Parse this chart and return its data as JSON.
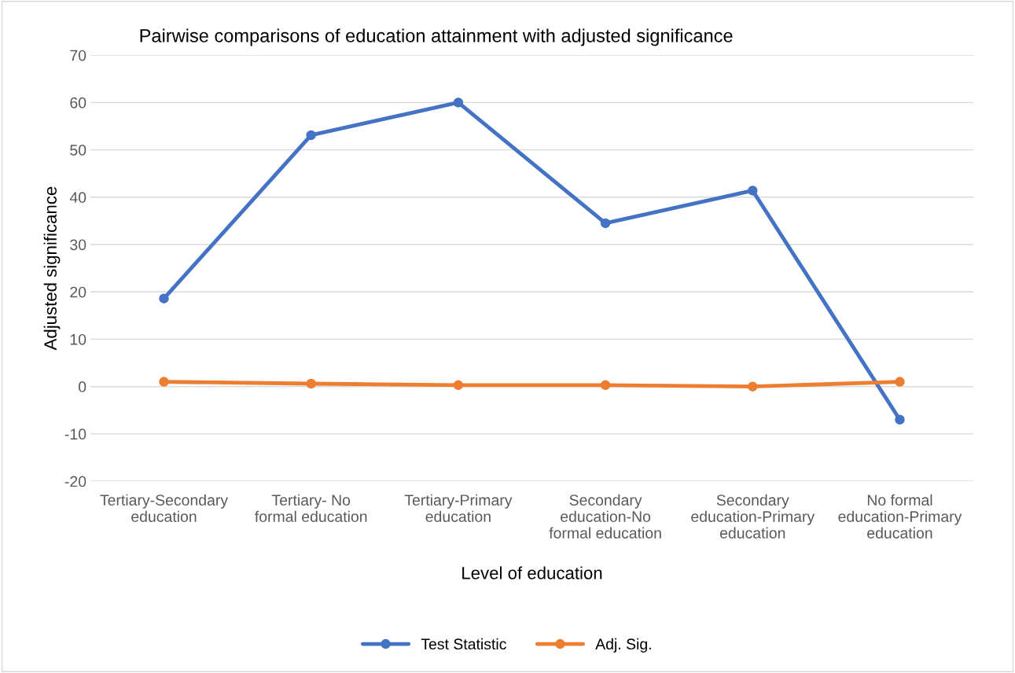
{
  "chart_data": {
    "type": "line",
    "title": "Pairwise comparisons of education attainment with adjusted significance",
    "xlabel": "Level of education",
    "ylabel": "Adjusted significance",
    "categories": [
      "Tertiary-Secondary\neducation",
      "Tertiary- No\nformal education",
      "Tertiary-Primary\neducation",
      "Secondary\neducation-No\nformal education",
      "Secondary\neducation-Primary\neducation",
      "No formal\neducation-Primary\neducation"
    ],
    "series": [
      {
        "name": "Test Statistic",
        "color": "#4472c4",
        "values": [
          18.6,
          53.1,
          60.0,
          34.5,
          41.4,
          -7.0
        ]
      },
      {
        "name": "Adj. Sig.",
        "color": "#ed7d31",
        "values": [
          1.0,
          0.6,
          0.3,
          0.3,
          0.0,
          1.0
        ]
      }
    ],
    "ylim": [
      -20,
      70
    ],
    "yticks": [
      -20,
      -10,
      0,
      10,
      20,
      30,
      40,
      50,
      60,
      70
    ],
    "grid": "y",
    "legend": "bottom",
    "marker": "circle",
    "line_style": "solid"
  }
}
